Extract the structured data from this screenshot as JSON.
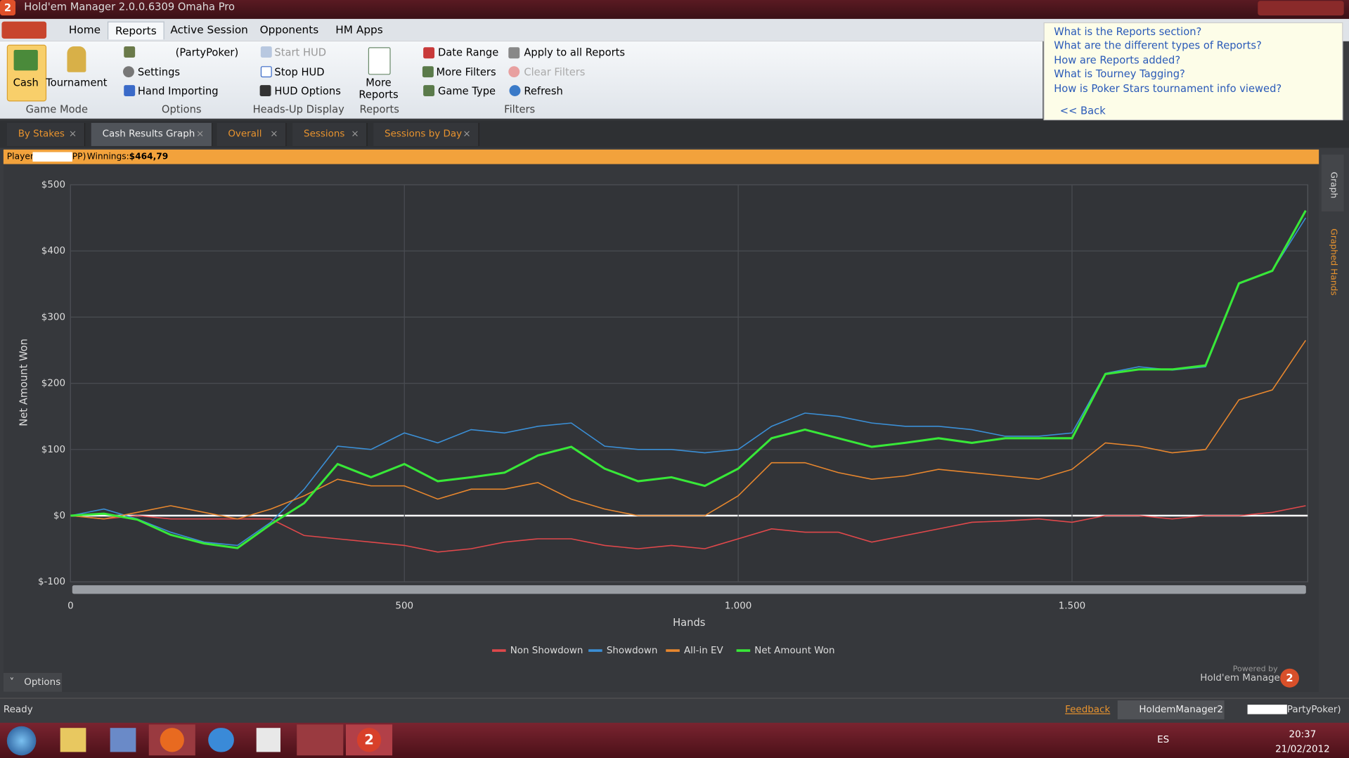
{
  "window": {
    "title": "Hold'em Manager 2.0.0.6309 Omaha Pro"
  },
  "menu": [
    "Home",
    "Reports",
    "Active Session",
    "Opponents",
    "HM Apps"
  ],
  "ribbon": {
    "groups": [
      {
        "label": "Game Mode",
        "items": [
          "Cash",
          "Tournament"
        ]
      },
      {
        "label": "Options",
        "items": [
          "(PartyPoker)",
          "Settings",
          "Hand Importing"
        ]
      },
      {
        "label": "Heads-Up Display",
        "items": [
          "Start HUD",
          "Stop HUD",
          "HUD Options"
        ]
      },
      {
        "label": "Reports",
        "items": [
          "More Reports"
        ]
      },
      {
        "label": "Filters",
        "items": [
          "Date Range",
          "More Filters",
          "Game Type",
          "Apply to all Reports",
          "Clear Filters",
          "Refresh"
        ]
      }
    ]
  },
  "help": {
    "links": [
      "What is the Reports section?",
      "What are the different types of Reports?",
      "How are Reports added?",
      "What is Tourney Tagging?",
      "How is Poker Stars tournament info viewed?"
    ],
    "back": "<< Back"
  },
  "tabs": [
    "By Stakes",
    "Cash Results Graph",
    "Overall",
    "Sessions",
    "Sessions by Day"
  ],
  "info_bar": {
    "player": "Player",
    "suffix": "PP)",
    "winnings_label": "Winnings:",
    "winnings": "$464,79"
  },
  "chart_data": {
    "type": "line",
    "x_label": "Hands",
    "y_label": "Net Amount Won",
    "xlim": [
      0,
      1853
    ],
    "ylim": [
      -100,
      500
    ],
    "xticks": [
      0,
      500,
      {
        "value": 1000,
        "label": "1.000"
      },
      {
        "value": 1500,
        "label": "1.500"
      }
    ],
    "yticks": [
      {
        "value": -100,
        "label": "$-100"
      },
      {
        "value": 0,
        "label": "$0"
      },
      {
        "value": 100,
        "label": "$100"
      },
      {
        "value": 200,
        "label": "$200"
      },
      {
        "value": 300,
        "label": "$300"
      },
      {
        "value": 400,
        "label": "$400"
      },
      {
        "value": 500,
        "label": "$500"
      }
    ],
    "grid": true,
    "legend": "bottom",
    "x": [
      0,
      50,
      100,
      150,
      200,
      250,
      300,
      350,
      400,
      450,
      500,
      550,
      600,
      650,
      700,
      750,
      800,
      850,
      900,
      950,
      1000,
      1050,
      1100,
      1150,
      1200,
      1250,
      1300,
      1350,
      1400,
      1450,
      1500,
      1550,
      1600,
      1650,
      1700,
      1750,
      1800,
      1850
    ],
    "series": [
      {
        "name": "Non Showdown",
        "color": "#e0484b",
        "values": [
          0,
          -5,
          0,
          -5,
          -5,
          -5,
          -5,
          -30,
          -35,
          -40,
          -45,
          -55,
          -50,
          -40,
          -35,
          -35,
          -45,
          -50,
          -45,
          -50,
          -35,
          -20,
          -25,
          -25,
          -40,
          -30,
          -20,
          -10,
          -8,
          -5,
          -10,
          0,
          0,
          -5,
          0,
          0,
          5,
          15
        ]
      },
      {
        "name": "Showdown",
        "color": "#3b8fd6",
        "values": [
          0,
          10,
          -5,
          -25,
          -40,
          -45,
          -10,
          40,
          105,
          100,
          125,
          110,
          130,
          125,
          135,
          140,
          105,
          100,
          100,
          95,
          100,
          135,
          155,
          150,
          140,
          135,
          135,
          130,
          120,
          120,
          125,
          215,
          225,
          220,
          225,
          350,
          370,
          450
        ]
      },
      {
        "name": "All-in EV",
        "color": "#e8872e",
        "values": [
          0,
          -5,
          5,
          15,
          5,
          -5,
          10,
          30,
          55,
          45,
          45,
          25,
          40,
          40,
          50,
          25,
          10,
          0,
          0,
          0,
          30,
          80,
          80,
          65,
          55,
          60,
          70,
          65,
          60,
          55,
          70,
          110,
          105,
          95,
          100,
          175,
          190,
          265
        ]
      },
      {
        "name": "Net Amount Won",
        "color": "#38e838",
        "values": [
          0,
          3,
          -6,
          -29,
          -42,
          -49,
          -13,
          19,
          78,
          58,
          78,
          52,
          58,
          65,
          91,
          104,
          71,
          52,
          58,
          45,
          71,
          117,
          130,
          117,
          104,
          110,
          117,
          110,
          117,
          117,
          117,
          214,
          221,
          221,
          227,
          351,
          370,
          461
        ]
      }
    ]
  },
  "side_tabs": [
    "Graph",
    "Graphed Hands"
  ],
  "options": "Options",
  "branding": {
    "powered_by": "Powered by",
    "name": "Hold'em Manager"
  },
  "status": {
    "text": "Ready",
    "feedback": "Feedback",
    "tasks": [
      "HoldemManager2",
      "PartyPoker)"
    ]
  },
  "taskbar": {
    "language": "ES",
    "time": "20:37",
    "date": "21/02/2012"
  }
}
